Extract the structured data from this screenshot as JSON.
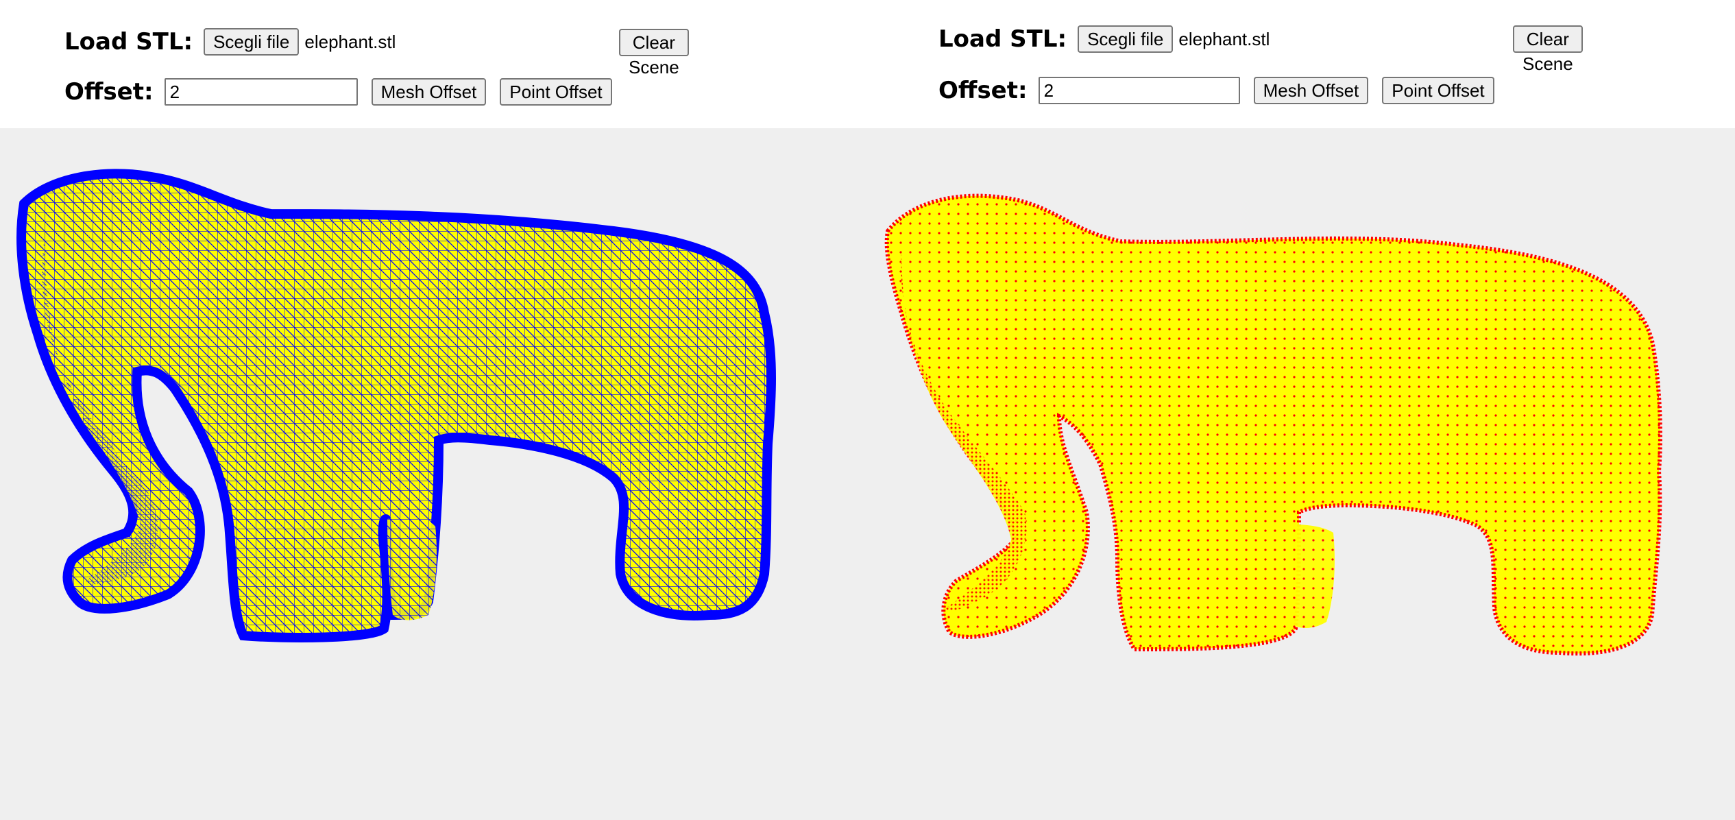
{
  "panels": [
    {
      "load_label": "Load STL:",
      "choose_file_label": "Scegli file",
      "file_name": "elephant.stl",
      "clear_label": "Clear Scene",
      "offset_label": "Offset:",
      "offset_value": "2",
      "mesh_offset_label": "Mesh Offset",
      "point_offset_label": "Point Offset"
    },
    {
      "load_label": "Load STL:",
      "choose_file_label": "Scegli file",
      "file_name": "elephant.stl",
      "clear_label": "Clear Scene",
      "offset_label": "Offset:",
      "offset_value": "2",
      "mesh_offset_label": "Mesh Offset",
      "point_offset_label": "Point Offset"
    }
  ],
  "scene": {
    "background_color": "#efefef",
    "model_fill_color": "#ffff00",
    "mesh_wire_color": "#0000ff",
    "point_color": "#ff0000"
  }
}
